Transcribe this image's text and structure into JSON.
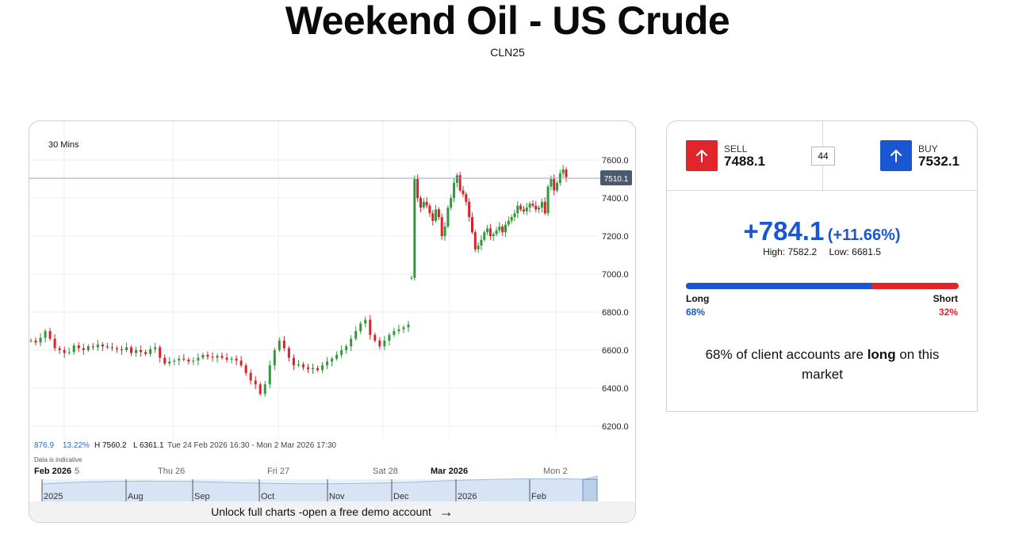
{
  "page": {
    "title": "Weekend Oil - US Crude",
    "subtitle": "CLN25"
  },
  "chart": {
    "interval": "30 Mins",
    "current_price": "7510.1",
    "stats": {
      "range": "876.9",
      "range_pct": "13.22%",
      "high": "H 7560.2",
      "low": "L 6361.1",
      "period": "Tue 24 Feb 2026 16:30 - Mon 2 Mar 2026 17:30"
    },
    "indicative_note": "Data is indicative",
    "time_labels": [
      "Feb 2026",
      "5",
      "Thu 26",
      "Fri 27",
      "Sat 28",
      "Mar 2026",
      "Mon 2"
    ],
    "navigator_labels": [
      "2025",
      "Aug",
      "Sep",
      "Oct",
      "Nov",
      "Dec",
      "2026",
      "Feb"
    ],
    "unlock_text": "Unlock full charts -open a free demo account"
  },
  "chart_data": {
    "type": "candlestick",
    "title": "",
    "y_ticks": [
      6200,
      6400,
      6600,
      6800,
      7000,
      7200,
      7400,
      7600
    ],
    "ylim": [
      6100,
      7650
    ],
    "current_line": 7510.1,
    "grid": true,
    "series": [
      {
        "segment": "before_gap",
        "start": 6650,
        "points": [
          6650,
          6640,
          6665,
          6700,
          6660,
          6610,
          6600,
          6585,
          6590,
          6625,
          6610,
          6600,
          6620,
          6615,
          6630,
          6620,
          6615,
          6610,
          6605,
          6600,
          6615,
          6585,
          6600,
          6590,
          6580,
          6605,
          6615,
          6560,
          6530,
          6540,
          6545,
          6555,
          6550,
          6540,
          6545,
          6560,
          6575,
          6565,
          6560,
          6570,
          6560,
          6550,
          6555,
          6545,
          6520,
          6480,
          6440,
          6420,
          6370,
          6420,
          6520,
          6600,
          6650,
          6610,
          6560,
          6520,
          6525,
          6510,
          6500,
          6505,
          6495,
          6520,
          6540,
          6555,
          6575,
          6600,
          6620,
          6660,
          6700,
          6740,
          6760,
          6680,
          6650,
          6620,
          6650,
          6680,
          6700,
          6710,
          6720,
          6735
        ]
      },
      {
        "segment": "after_gap",
        "start": 6980,
        "points": [
          6980,
          7500,
          7400,
          7350,
          7380,
          7360,
          7320,
          7280,
          7340,
          7300,
          7200,
          7250,
          7350,
          7400,
          7480,
          7520,
          7440,
          7420,
          7380,
          7300,
          7220,
          7130,
          7150,
          7180,
          7220,
          7240,
          7200,
          7210,
          7230,
          7250,
          7220,
          7260,
          7280,
          7300,
          7320,
          7360,
          7340,
          7330,
          7350,
          7370,
          7360,
          7340,
          7350,
          7380,
          7320,
          7460,
          7500,
          7440,
          7480,
          7530,
          7550,
          7510
        ]
      }
    ]
  },
  "trade": {
    "sell_label": "SELL",
    "sell_price": "7488.1",
    "buy_label": "BUY",
    "buy_price": "7532.1",
    "spread": "44",
    "change": "+784.1",
    "change_pct": "(+11.66%)",
    "high": "High: 7582.2",
    "low": "Low: 6681.5",
    "colors": {
      "sell": "#e0262a",
      "buy": "#1957d2"
    }
  },
  "sentiment": {
    "long_label": "Long",
    "short_label": "Short",
    "long_pct": "68%",
    "short_pct": "32%",
    "long_fraction": 0.68,
    "text_prefix": "68% of client accounts are ",
    "text_bold": "long",
    "text_suffix": " on this market"
  }
}
